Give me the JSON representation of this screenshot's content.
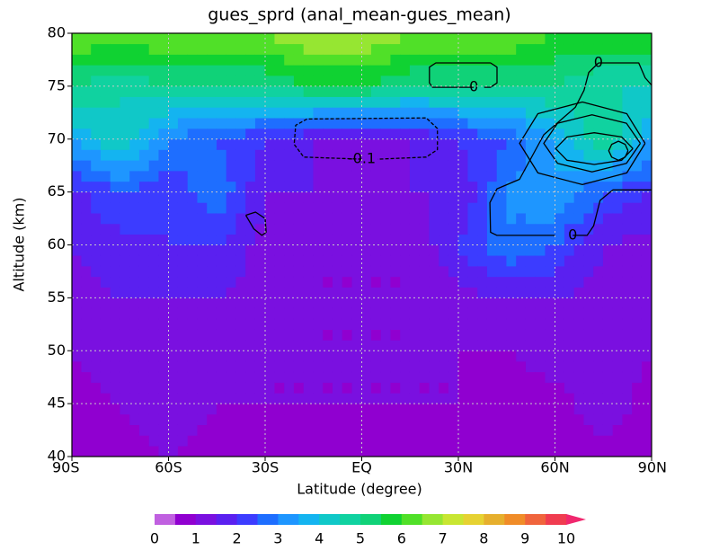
{
  "chart_data": {
    "type": "contour",
    "title": "gues_sprd (anal_mean-gues_mean)",
    "x_label": "Latitude (degree)",
    "y_label": "Altitude (km)",
    "xlim": [
      -90,
      90
    ],
    "ylim": [
      40,
      80
    ],
    "xticks": [
      {
        "value": -90,
        "label": "90S"
      },
      {
        "value": -60,
        "label": "60S"
      },
      {
        "value": -30,
        "label": "30S"
      },
      {
        "value": 0,
        "label": "EQ"
      },
      {
        "value": 30,
        "label": "30N"
      },
      {
        "value": 60,
        "label": "60N"
      },
      {
        "value": 90,
        "label": "90N"
      }
    ],
    "yticks": [
      40,
      45,
      50,
      55,
      60,
      65,
      70,
      75,
      80
    ],
    "grid": true,
    "x": [
      -90,
      -75,
      -60,
      -45,
      -30,
      -15,
      0,
      15,
      30,
      45,
      60,
      75,
      90
    ],
    "y": [
      40,
      45,
      50,
      55,
      60,
      65,
      70,
      75,
      80
    ],
    "z": [
      [
        0.5,
        0.8,
        1,
        0.8,
        0.8,
        0.8,
        0.8,
        0.5,
        0.5,
        0.5,
        0.5,
        0.8,
        0.5
      ],
      [
        0.8,
        1,
        1.3,
        1,
        1,
        1,
        1,
        1,
        1,
        0.5,
        0.8,
        1.3,
        0.8
      ],
      [
        1,
        1.3,
        1.5,
        1.3,
        1,
        1,
        1,
        1,
        1,
        1,
        1.3,
        1.3,
        1
      ],
      [
        1.3,
        1.5,
        1.5,
        1.5,
        1.3,
        1,
        1,
        1,
        1.3,
        1.5,
        1.5,
        1.3,
        1.3
      ],
      [
        1.5,
        1.8,
        2,
        2,
        1.3,
        1,
        1,
        1,
        2,
        3,
        2.5,
        1.5,
        1.3
      ],
      [
        1.8,
        2.5,
        2,
        3,
        1.5,
        1.5,
        1.3,
        1.5,
        1.5,
        3,
        3.5,
        2.5,
        2
      ],
      [
        3.5,
        4.5,
        3,
        2.5,
        2,
        1.5,
        1.3,
        1.5,
        2,
        2.5,
        3.5,
        5,
        3.5
      ],
      [
        5,
        4.5,
        5,
        5,
        5,
        5.5,
        5.5,
        5,
        5,
        5,
        5,
        4.5,
        4.5
      ],
      [
        6.5,
        6.5,
        6.5,
        6.5,
        6.5,
        7,
        7,
        6.5,
        6.5,
        6.5,
        6,
        6,
        6
      ]
    ],
    "levels": [
      0,
      0.5,
      1,
      1.5,
      2,
      2.5,
      3,
      3.5,
      4,
      4.5,
      5,
      5.5,
      6,
      6.5,
      7,
      7.5,
      8,
      8.5,
      9,
      9.5,
      10
    ],
    "colors": [
      "#c060e0",
      "#9000d0",
      "#7a10e0",
      "#5a20f0",
      "#3c3cff",
      "#1e6eff",
      "#1e96ff",
      "#14b4f0",
      "#10c8c8",
      "#10d2a0",
      "#10d278",
      "#10d232",
      "#50e028",
      "#96e632",
      "#c8e632",
      "#e6d232",
      "#e6af2d",
      "#f08c28",
      "#f0643c",
      "#f03c50",
      "#f0286e"
    ],
    "colorbar_ticks": [
      0,
      1,
      2,
      3,
      4,
      5,
      6,
      7,
      8,
      9,
      10
    ],
    "contours": [
      {
        "level": 0,
        "label": "0",
        "x": [
          34.8,
          22,
          21,
          21,
          23,
          40,
          42,
          42,
          40,
          38
        ],
        "y": [
          74.9,
          74.9,
          75.3,
          76.8,
          77.2,
          77.2,
          76.8,
          75.3,
          74.9,
          74.9
        ]
      },
      {
        "level": -0.1,
        "label": "-0.1",
        "x": [
          0,
          -18,
          -21,
          -20.5,
          -17,
          20,
          23.5,
          23.5,
          20,
          5
        ],
        "y": [
          68.1,
          68.3,
          69.5,
          71.3,
          71.9,
          72,
          71,
          69,
          68.3,
          68.1
        ]
      },
      {
        "level": 0,
        "x": [
          -36,
          -33,
          -30,
          -29.7,
          -31,
          -33.5,
          -36
        ],
        "y": [
          62.8,
          63.1,
          62.5,
          61.2,
          60.9,
          61.5,
          62.8
        ]
      },
      {
        "level": 0,
        "label": "0",
        "x": [
          65.5,
          70,
          72,
          74,
          78,
          90
        ],
        "y": [
          60.9,
          60.9,
          61.8,
          64.2,
          65.2,
          65.2
        ]
      },
      {
        "level": 0,
        "label": "0",
        "x": [
          73.5,
          86,
          88,
          90,
          null,
          73.5,
          70.5,
          69,
          66.3,
          56.5,
          49,
          42,
          39.8,
          40,
          42,
          60
        ],
        "y": [
          77.2,
          77.2,
          75.8,
          75.1,
          null,
          77.2,
          76.3,
          74.6,
          73,
          70.4,
          66.2,
          65.3,
          64,
          61.2,
          60.9,
          60.9
        ]
      },
      {
        "level": 0.1,
        "x": [
          88,
          82.3,
          68.5,
          54.7,
          49,
          54.7,
          68.5,
          82.3,
          88
        ],
        "y": [
          69.6,
          72.4,
          73.5,
          72.4,
          69.6,
          66.8,
          65.7,
          66.8,
          69.6
        ]
      },
      {
        "level": 0.2,
        "x": [
          86.5,
          82.2,
          71.5,
          60.8,
          56.5,
          60.8,
          71.5,
          82.2,
          86.5
        ],
        "y": [
          69.6,
          71.5,
          72.3,
          71.5,
          69.6,
          67.7,
          66.9,
          67.7,
          69.6
        ]
      },
      {
        "level": 0.3,
        "x": [
          84.2,
          80.7,
          72.2,
          63.7,
          60.2,
          63.7,
          72.2,
          80.7,
          84.2
        ],
        "y": [
          69.1,
          70.2,
          70.6,
          70.2,
          69.1,
          68,
          67.6,
          68,
          69.1
        ]
      },
      {
        "level": 0.4,
        "x": [
          82.7,
          81.8,
          79.7,
          77.6,
          76.7,
          77.6,
          79.7,
          81.8,
          82.7
        ],
        "y": [
          68.9,
          69.5,
          69.8,
          69.5,
          68.9,
          68.3,
          68,
          68.3,
          68.9
        ]
      }
    ]
  }
}
